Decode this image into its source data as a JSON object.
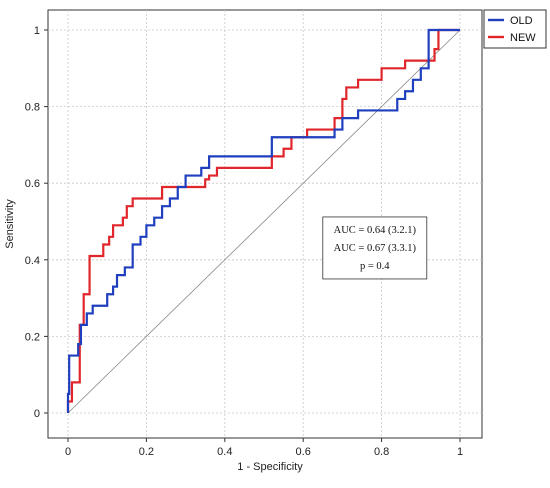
{
  "chart_data": {
    "type": "line",
    "xlabel": "1 - Specificity",
    "ylabel": "Sensitivity",
    "xlim": [
      0,
      1
    ],
    "ylim": [
      0,
      1
    ],
    "xticks": [
      "0",
      "0.2",
      "0.4",
      "0.6",
      "0.8",
      "1"
    ],
    "yticks": [
      "0",
      "0.2",
      "0.4",
      "0.6",
      "0.8",
      "1"
    ],
    "grid": true,
    "legend_position": "top-right",
    "reference_line": {
      "from": [
        0,
        0
      ],
      "to": [
        1,
        1
      ],
      "color": "#888888"
    },
    "series": [
      {
        "name": "OLD",
        "color": "#1f3fbf",
        "x": [
          0,
          0,
          0.003,
          0.003,
          0.026,
          0.026,
          0.033,
          0.033,
          0.048,
          0.048,
          0.063,
          0.063,
          0.1,
          0.1,
          0.115,
          0.115,
          0.125,
          0.125,
          0.145,
          0.145,
          0.165,
          0.165,
          0.185,
          0.185,
          0.2,
          0.2,
          0.22,
          0.22,
          0.24,
          0.24,
          0.26,
          0.26,
          0.28,
          0.28,
          0.3,
          0.3,
          0.34,
          0.34,
          0.36,
          0.36,
          0.52,
          0.52,
          0.54,
          0.54,
          0.68,
          0.68,
          0.7,
          0.7,
          0.74,
          0.74,
          0.8,
          0.8,
          0.84,
          0.84,
          0.86,
          0.86,
          0.88,
          0.88,
          0.9,
          0.9,
          0.92,
          0.92,
          1
        ],
        "y": [
          0,
          0.05,
          0.05,
          0.15,
          0.15,
          0.18,
          0.18,
          0.23,
          0.23,
          0.26,
          0.26,
          0.28,
          0.28,
          0.31,
          0.31,
          0.33,
          0.33,
          0.36,
          0.36,
          0.38,
          0.38,
          0.44,
          0.44,
          0.46,
          0.46,
          0.49,
          0.49,
          0.51,
          0.51,
          0.54,
          0.54,
          0.56,
          0.56,
          0.59,
          0.59,
          0.62,
          0.62,
          0.64,
          0.64,
          0.67,
          0.67,
          0.72,
          0.72,
          0.72,
          0.72,
          0.74,
          0.74,
          0.77,
          0.77,
          0.79,
          0.79,
          0.79,
          0.79,
          0.82,
          0.82,
          0.84,
          0.84,
          0.87,
          0.87,
          0.9,
          0.9,
          1,
          1
        ]
      },
      {
        "name": "NEW",
        "color": "#e0262b",
        "x": [
          0,
          0,
          0.01,
          0.01,
          0.03,
          0.03,
          0.04,
          0.04,
          0.055,
          0.055,
          0.09,
          0.09,
          0.105,
          0.105,
          0.115,
          0.115,
          0.14,
          0.14,
          0.15,
          0.15,
          0.165,
          0.165,
          0.18,
          0.18,
          0.2,
          0.2,
          0.21,
          0.21,
          0.24,
          0.24,
          0.3,
          0.3,
          0.35,
          0.35,
          0.36,
          0.36,
          0.38,
          0.38,
          0.52,
          0.52,
          0.55,
          0.55,
          0.57,
          0.57,
          0.61,
          0.61,
          0.64,
          0.64,
          0.68,
          0.68,
          0.7,
          0.7,
          0.71,
          0.71,
          0.72,
          0.72,
          0.74,
          0.74,
          0.76,
          0.76,
          0.8,
          0.8,
          0.86,
          0.86,
          0.92,
          0.92,
          0.935,
          0.935,
          0.945,
          0.945,
          1
        ],
        "y": [
          0,
          0.03,
          0.03,
          0.08,
          0.08,
          0.23,
          0.23,
          0.31,
          0.31,
          0.41,
          0.41,
          0.44,
          0.44,
          0.46,
          0.46,
          0.49,
          0.49,
          0.51,
          0.51,
          0.54,
          0.54,
          0.56,
          0.56,
          0.56,
          0.56,
          0.56,
          0.56,
          0.56,
          0.56,
          0.59,
          0.59,
          0.59,
          0.59,
          0.61,
          0.61,
          0.62,
          0.62,
          0.64,
          0.64,
          0.67,
          0.67,
          0.69,
          0.69,
          0.72,
          0.72,
          0.74,
          0.74,
          0.74,
          0.74,
          0.77,
          0.77,
          0.82,
          0.82,
          0.85,
          0.85,
          0.85,
          0.85,
          0.87,
          0.87,
          0.87,
          0.87,
          0.9,
          0.9,
          0.92,
          0.92,
          0.92,
          0.92,
          0.95,
          0.95,
          1,
          1
        ]
      }
    ],
    "annotation": {
      "lines": [
        "AUC = 0.64 (3.2.1)",
        "AUC = 0.67 (3.3.1)",
        "p = 0.4"
      ],
      "data_anchor": [
        0.65,
        0.35
      ]
    }
  }
}
